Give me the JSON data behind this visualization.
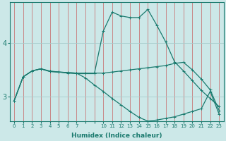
{
  "xlabel": "Humidex (Indice chaleur)",
  "bg_color": "#cce8e8",
  "line_color": "#1a7a6e",
  "grid_color_v": "#c87878",
  "grid_color_h": "#a8cccc",
  "xtick_labels": [
    "0",
    "1",
    "2",
    "3",
    "4",
    "5",
    "6",
    "7",
    "",
    "",
    "10",
    "11",
    "12",
    "13",
    "14",
    "15",
    "16",
    "17",
    "18",
    "19",
    "20",
    "21",
    "22",
    "23"
  ],
  "ytick_positions": [
    3.0,
    4.0
  ],
  "ytick_labels": [
    "3",
    "4"
  ],
  "ylim": [
    2.55,
    4.75
  ],
  "n_points": 24,
  "line1_y": [
    2.93,
    3.37,
    3.48,
    3.52,
    3.48,
    3.46,
    3.44,
    3.43,
    3.43,
    3.43,
    4.22,
    4.57,
    4.5,
    4.47,
    4.47,
    4.62,
    4.33,
    4.02,
    3.65,
    3.48,
    3.3,
    3.12,
    2.97,
    2.82
  ],
  "line2_y": [
    2.93,
    3.37,
    3.48,
    3.52,
    3.47,
    3.46,
    3.45,
    3.44,
    3.44,
    3.44,
    3.44,
    3.46,
    3.48,
    3.5,
    3.52,
    3.54,
    3.56,
    3.58,
    3.62,
    3.64,
    3.5,
    3.33,
    3.13,
    2.75
  ],
  "line3_y": [
    2.93,
    3.37,
    3.48,
    3.52,
    3.47,
    3.46,
    3.45,
    3.44,
    3.35,
    3.22,
    3.1,
    2.97,
    2.85,
    2.73,
    2.62,
    2.55,
    2.57,
    2.6,
    2.63,
    2.68,
    2.73,
    2.78,
    3.1,
    2.68
  ],
  "title_fontsize": 6,
  "xlabel_fontsize": 6.5,
  "ytick_fontsize": 7,
  "xtick_fontsize": 5.0
}
